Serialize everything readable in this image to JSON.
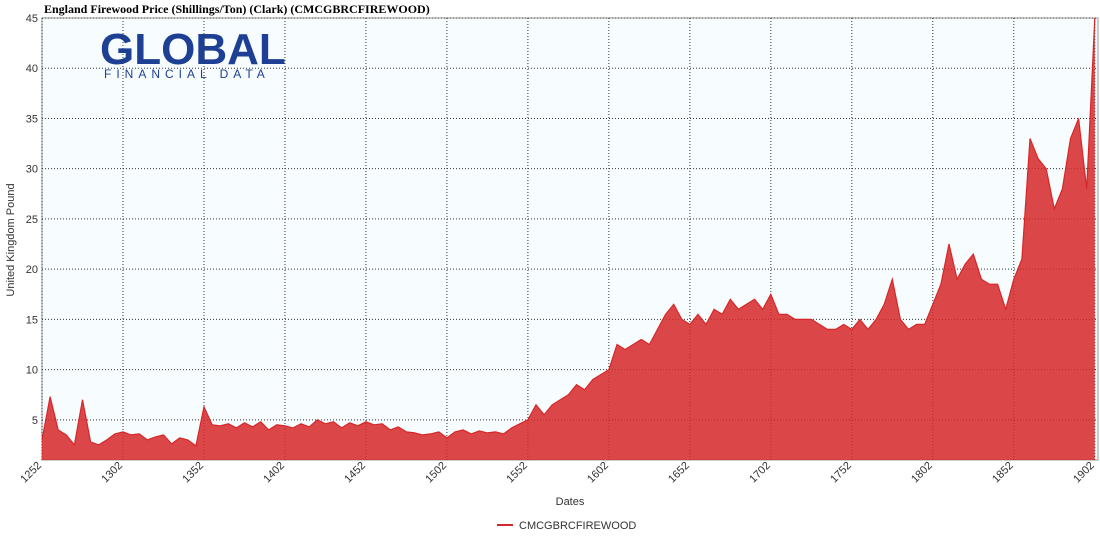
{
  "chart_data": {
    "type": "area",
    "title": "England Firewood Price (Shillings/Ton) (Clark) (CMCGBRCFIREWOOD)",
    "logo": {
      "name": "GLOBAL",
      "tagline": "FINANCIAL DATA"
    },
    "x_label": "Dates",
    "y_label": "United Kingdom Pound",
    "x": [
      1252,
      1257,
      1262,
      1267,
      1272,
      1277,
      1282,
      1287,
      1292,
      1297,
      1302,
      1307,
      1312,
      1317,
      1322,
      1327,
      1332,
      1337,
      1342,
      1347,
      1352,
      1357,
      1362,
      1367,
      1372,
      1377,
      1382,
      1387,
      1392,
      1397,
      1402,
      1407,
      1412,
      1417,
      1422,
      1427,
      1432,
      1437,
      1442,
      1447,
      1452,
      1457,
      1462,
      1467,
      1472,
      1477,
      1482,
      1487,
      1492,
      1497,
      1502,
      1507,
      1512,
      1517,
      1522,
      1527,
      1532,
      1537,
      1542,
      1547,
      1552,
      1557,
      1562,
      1567,
      1572,
      1577,
      1582,
      1587,
      1592,
      1597,
      1602,
      1607,
      1612,
      1617,
      1622,
      1627,
      1632,
      1637,
      1642,
      1647,
      1652,
      1657,
      1662,
      1667,
      1672,
      1677,
      1682,
      1687,
      1692,
      1697,
      1702,
      1707,
      1712,
      1717,
      1722,
      1727,
      1732,
      1737,
      1742,
      1747,
      1752,
      1757,
      1762,
      1767,
      1772,
      1777,
      1782,
      1787,
      1792,
      1797,
      1802,
      1807,
      1812,
      1817,
      1822,
      1827,
      1832,
      1837,
      1842,
      1847,
      1852,
      1857,
      1862,
      1867,
      1872,
      1877,
      1882,
      1887,
      1892,
      1897,
      1902
    ],
    "series": [
      {
        "name": "CMCGBRCFIREWOOD",
        "color": "#d62728",
        "values": [
          3.0,
          7.3,
          4.0,
          3.5,
          2.5,
          7.0,
          2.8,
          2.5,
          3.0,
          3.6,
          3.8,
          3.5,
          3.6,
          3.0,
          3.3,
          3.5,
          2.6,
          3.2,
          3.0,
          2.4,
          6.3,
          4.5,
          4.4,
          4.6,
          4.2,
          4.7,
          4.3,
          4.8,
          4.0,
          4.5,
          4.4,
          4.2,
          4.6,
          4.3,
          5.0,
          4.6,
          4.8,
          4.2,
          4.7,
          4.4,
          4.8,
          4.5,
          4.6,
          4.0,
          4.3,
          3.8,
          3.7,
          3.5,
          3.6,
          3.8,
          3.2,
          3.8,
          4.0,
          3.6,
          3.9,
          3.7,
          3.8,
          3.6,
          4.2,
          4.6,
          5.0,
          6.5,
          5.5,
          6.5,
          7.0,
          7.5,
          8.5,
          8.0,
          9.0,
          9.5,
          10.0,
          12.5,
          12.0,
          12.5,
          13.0,
          12.5,
          14.0,
          15.5,
          16.5,
          15.0,
          14.5,
          15.5,
          14.5,
          16.0,
          15.5,
          17.0,
          16.0,
          16.5,
          17.0,
          16.0,
          17.5,
          15.5,
          15.5,
          15.0,
          15.0,
          15.0,
          14.5,
          14.0,
          14.0,
          14.5,
          14.0,
          15.0,
          14.0,
          15.0,
          16.5,
          19.0,
          15.0,
          14.0,
          14.5,
          14.5,
          16.5,
          18.5,
          22.5,
          19.0,
          20.5,
          21.5,
          19.0,
          18.5,
          18.5,
          16.0,
          19.0,
          21.0,
          33.0,
          31.0,
          30.0,
          26.0,
          28.0,
          33.0,
          35.0,
          28.0,
          45.0
        ]
      }
    ],
    "xlim": [
      1252,
      1904
    ],
    "xticks": [
      1252,
      1302,
      1352,
      1402,
      1452,
      1502,
      1552,
      1602,
      1652,
      1702,
      1752,
      1802,
      1852,
      1902
    ],
    "ylim": [
      1,
      45
    ],
    "yticks": [
      5,
      10,
      15,
      20,
      25,
      30,
      35,
      40,
      45
    ],
    "grid": true
  }
}
